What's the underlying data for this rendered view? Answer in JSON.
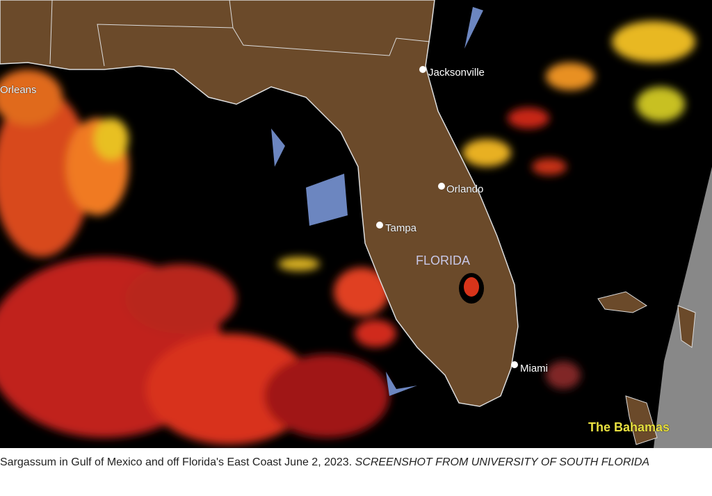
{
  "map": {
    "labels": {
      "region": "FLORIDA",
      "bahamas": "The Bahamas"
    },
    "cities": [
      "Orleans",
      "Jacksonville",
      "Orlando",
      "Tampa",
      "Miami"
    ]
  },
  "caption": {
    "text": "Sargassum in Gulf of Mexico and off Florida's East Coast June 2, 2023.",
    "credit": "SCREENSHOT FROM UNIVERSITY OF SOUTH FLORIDA"
  }
}
